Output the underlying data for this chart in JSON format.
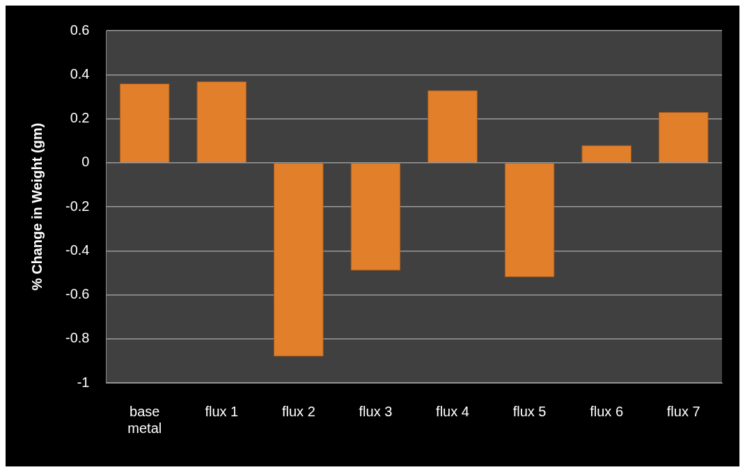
{
  "chart_data": {
    "type": "bar",
    "ylabel": "% Change in Weight (gm)",
    "categories": [
      "base metal",
      "flux 1",
      "flux 2",
      "flux 3",
      "flux 4",
      "flux 5",
      "flux 6",
      "flux 7"
    ],
    "values": [
      0.36,
      0.37,
      -0.88,
      -0.49,
      0.33,
      -0.52,
      0.08,
      0.23
    ],
    "color": "#e17f2a",
    "ylim": [
      -1,
      0.6
    ],
    "yticks": [
      -1,
      -0.8,
      -0.6,
      -0.4,
      -0.2,
      0,
      0.2,
      0.4,
      0.6
    ],
    "grid": "y"
  }
}
